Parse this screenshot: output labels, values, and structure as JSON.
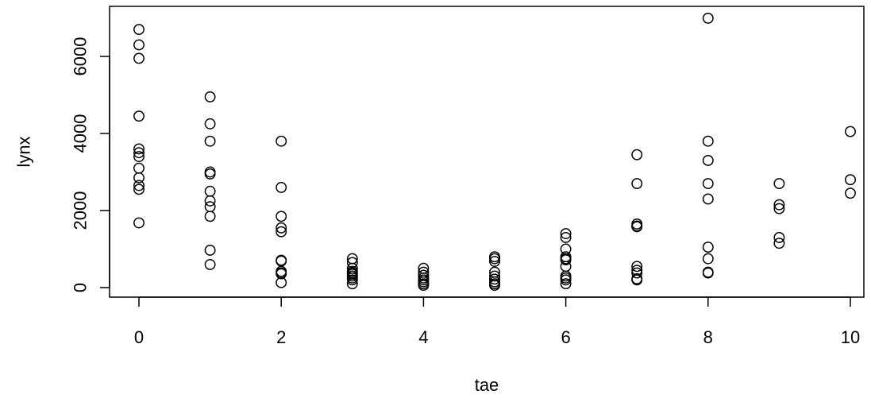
{
  "chart_data": {
    "type": "scatter",
    "title": "",
    "xlabel": "tae",
    "ylabel": "lynx",
    "xlim": [
      0,
      10
    ],
    "ylim": [
      0,
      6991
    ],
    "x_ticks": [
      0,
      2,
      4,
      6,
      8,
      10
    ],
    "x_tick_labels": [
      "0",
      "2",
      "4",
      "6",
      "8",
      "10"
    ],
    "y_ticks": [
      0,
      2000,
      4000,
      6000
    ],
    "y_tick_labels": [
      "0",
      "2000",
      "4000",
      "6000"
    ],
    "grid": false,
    "legend": "none",
    "points": [
      {
        "x": 0,
        "y": 6700
      },
      {
        "x": 0,
        "y": 6300
      },
      {
        "x": 0,
        "y": 5950
      },
      {
        "x": 0,
        "y": 4450
      },
      {
        "x": 0,
        "y": 3600
      },
      {
        "x": 0,
        "y": 3500
      },
      {
        "x": 0,
        "y": 3400
      },
      {
        "x": 0,
        "y": 3100
      },
      {
        "x": 0,
        "y": 2850
      },
      {
        "x": 0,
        "y": 2650
      },
      {
        "x": 0,
        "y": 2550
      },
      {
        "x": 0,
        "y": 1680
      },
      {
        "x": 1,
        "y": 4950
      },
      {
        "x": 1,
        "y": 4250
      },
      {
        "x": 1,
        "y": 3800
      },
      {
        "x": 1,
        "y": 3000
      },
      {
        "x": 1,
        "y": 2950
      },
      {
        "x": 1,
        "y": 2500
      },
      {
        "x": 1,
        "y": 2250
      },
      {
        "x": 1,
        "y": 2100
      },
      {
        "x": 1,
        "y": 1850
      },
      {
        "x": 1,
        "y": 970
      },
      {
        "x": 1,
        "y": 600
      },
      {
        "x": 2,
        "y": 3800
      },
      {
        "x": 2,
        "y": 2600
      },
      {
        "x": 2,
        "y": 1850
      },
      {
        "x": 2,
        "y": 1550
      },
      {
        "x": 2,
        "y": 1450
      },
      {
        "x": 2,
        "y": 710
      },
      {
        "x": 2,
        "y": 690
      },
      {
        "x": 2,
        "y": 420
      },
      {
        "x": 2,
        "y": 380
      },
      {
        "x": 2,
        "y": 360
      },
      {
        "x": 2,
        "y": 130
      },
      {
        "x": 3,
        "y": 750
      },
      {
        "x": 3,
        "y": 650
      },
      {
        "x": 3,
        "y": 500
      },
      {
        "x": 3,
        "y": 420
      },
      {
        "x": 3,
        "y": 380
      },
      {
        "x": 3,
        "y": 350
      },
      {
        "x": 3,
        "y": 300
      },
      {
        "x": 3,
        "y": 250
      },
      {
        "x": 3,
        "y": 200
      },
      {
        "x": 3,
        "y": 100
      },
      {
        "x": 4,
        "y": 500
      },
      {
        "x": 4,
        "y": 400
      },
      {
        "x": 4,
        "y": 320
      },
      {
        "x": 4,
        "y": 250
      },
      {
        "x": 4,
        "y": 200
      },
      {
        "x": 4,
        "y": 150
      },
      {
        "x": 4,
        "y": 100
      },
      {
        "x": 4,
        "y": 60
      },
      {
        "x": 5,
        "y": 800
      },
      {
        "x": 5,
        "y": 750
      },
      {
        "x": 5,
        "y": 680
      },
      {
        "x": 5,
        "y": 400
      },
      {
        "x": 5,
        "y": 300
      },
      {
        "x": 5,
        "y": 220
      },
      {
        "x": 5,
        "y": 150
      },
      {
        "x": 5,
        "y": 100
      },
      {
        "x": 5,
        "y": 60
      },
      {
        "x": 6,
        "y": 1400
      },
      {
        "x": 6,
        "y": 1300
      },
      {
        "x": 6,
        "y": 1000
      },
      {
        "x": 6,
        "y": 800
      },
      {
        "x": 6,
        "y": 750
      },
      {
        "x": 6,
        "y": 720
      },
      {
        "x": 6,
        "y": 550
      },
      {
        "x": 6,
        "y": 300
      },
      {
        "x": 6,
        "y": 250
      },
      {
        "x": 6,
        "y": 200
      },
      {
        "x": 6,
        "y": 100
      },
      {
        "x": 7,
        "y": 3450
      },
      {
        "x": 7,
        "y": 2700
      },
      {
        "x": 7,
        "y": 1650
      },
      {
        "x": 7,
        "y": 1600
      },
      {
        "x": 7,
        "y": 1580
      },
      {
        "x": 7,
        "y": 550
      },
      {
        "x": 7,
        "y": 450
      },
      {
        "x": 7,
        "y": 380
      },
      {
        "x": 7,
        "y": 230
      },
      {
        "x": 7,
        "y": 200
      },
      {
        "x": 8,
        "y": 6991
      },
      {
        "x": 8,
        "y": 3800
      },
      {
        "x": 8,
        "y": 3300
      },
      {
        "x": 8,
        "y": 2700
      },
      {
        "x": 8,
        "y": 2300
      },
      {
        "x": 8,
        "y": 1050
      },
      {
        "x": 8,
        "y": 750
      },
      {
        "x": 8,
        "y": 400
      },
      {
        "x": 8,
        "y": 380
      },
      {
        "x": 9,
        "y": 2700
      },
      {
        "x": 9,
        "y": 2150
      },
      {
        "x": 9,
        "y": 2050
      },
      {
        "x": 9,
        "y": 1300
      },
      {
        "x": 9,
        "y": 1150
      },
      {
        "x": 10,
        "y": 4050
      },
      {
        "x": 10,
        "y": 2800
      },
      {
        "x": 10,
        "y": 2450
      }
    ]
  }
}
